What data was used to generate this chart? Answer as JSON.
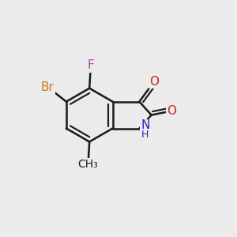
{
  "background_color": "#EBEBEB",
  "figsize": [
    3.0,
    3.0
  ],
  "dpi": 100,
  "bond_color": "#1a1a1a",
  "bond_width": 1.8,
  "label_colors": {
    "F": "#bb44bb",
    "Br": "#cc7722",
    "N": "#2222cc",
    "O": "#cc2222"
  },
  "label_fontsize": 11,
  "small_fontsize": 9
}
